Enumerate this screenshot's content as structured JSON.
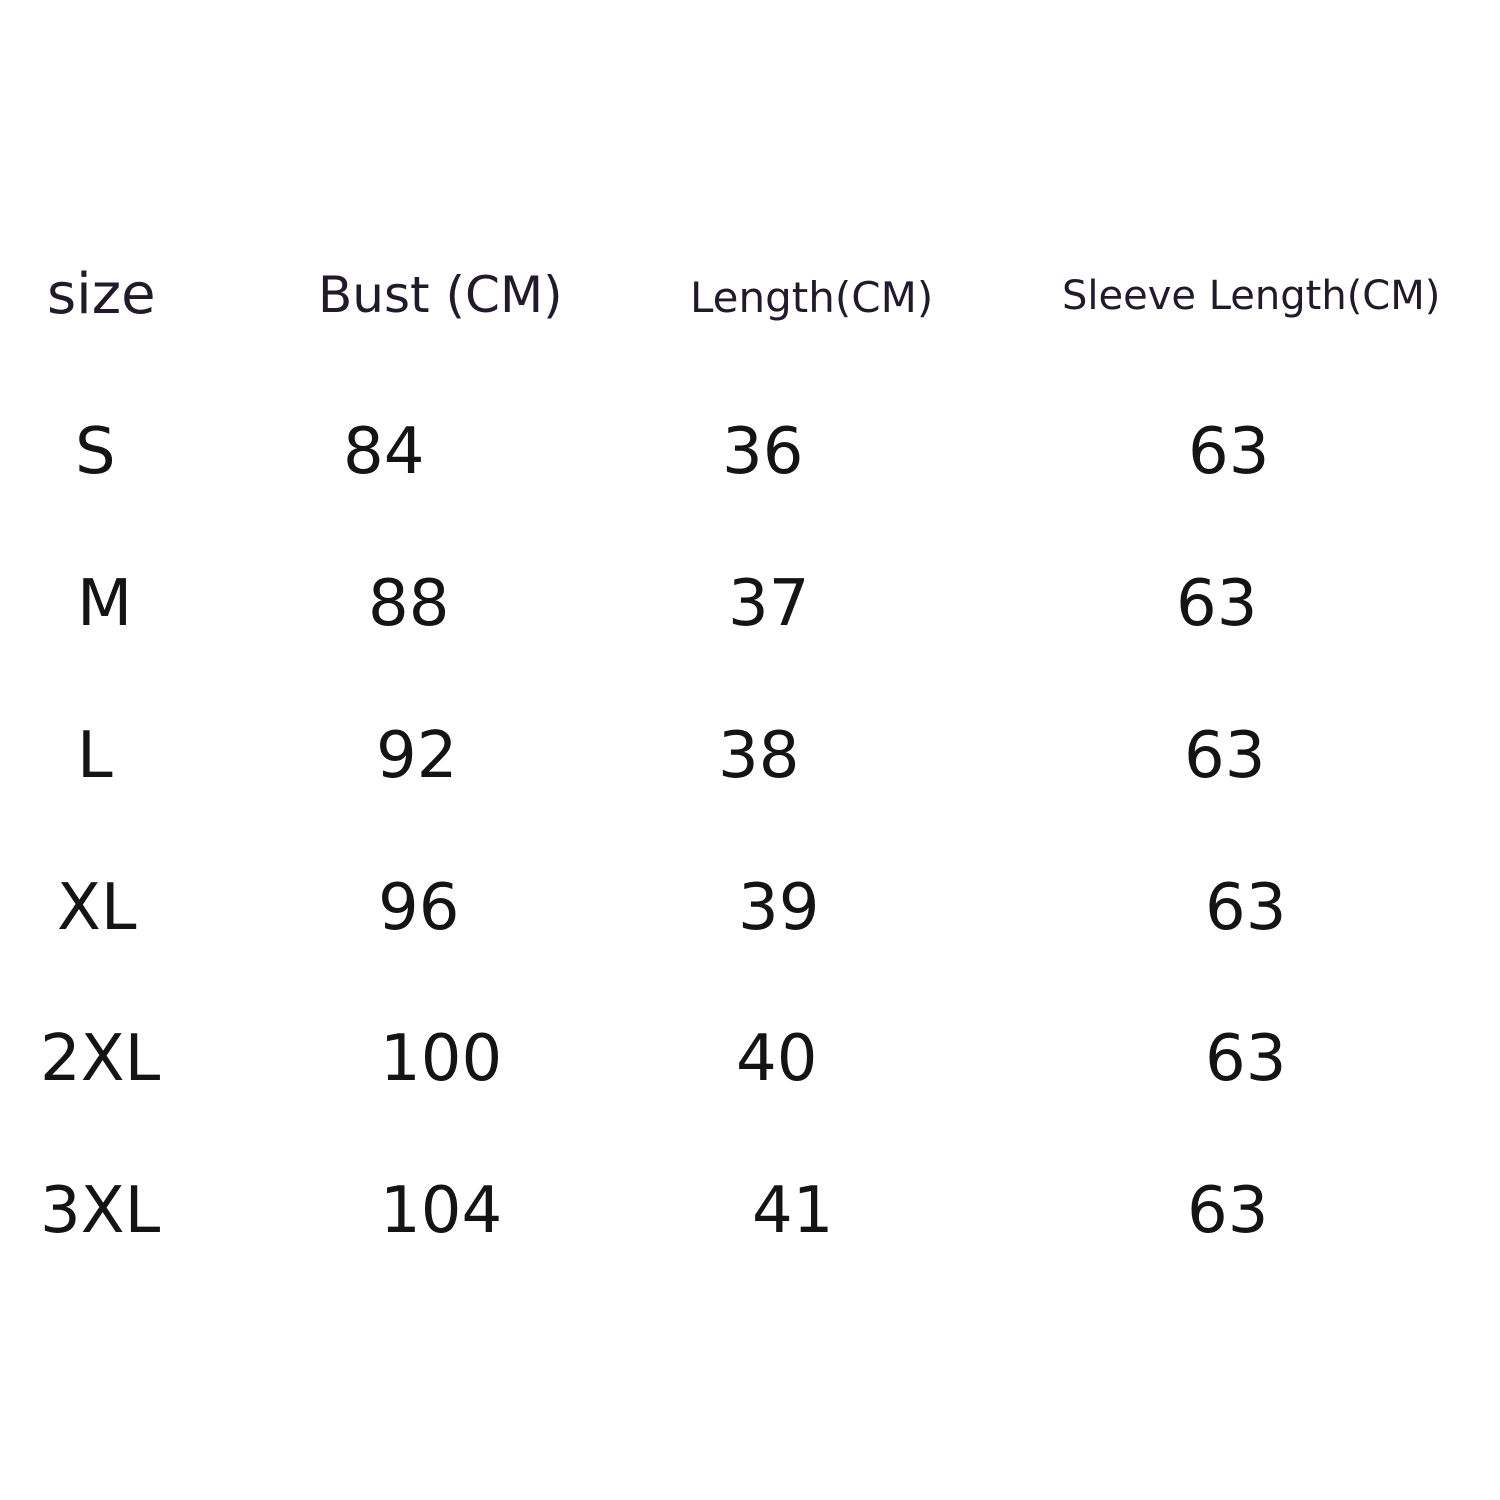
{
  "headers": [
    "size",
    "Bust (CM)",
    "Length(CM)",
    "Sleeve Length(CM)"
  ],
  "rows": [
    [
      "S",
      "84",
      "36",
      "63"
    ],
    [
      "M",
      "88",
      "37",
      "63"
    ],
    [
      "L",
      "92",
      "38",
      "63"
    ],
    [
      "XL",
      "96",
      "39",
      "63"
    ],
    [
      "2XL",
      "100",
      "40",
      "63"
    ],
    [
      "3XL",
      "104",
      "41",
      "63"
    ]
  ]
}
